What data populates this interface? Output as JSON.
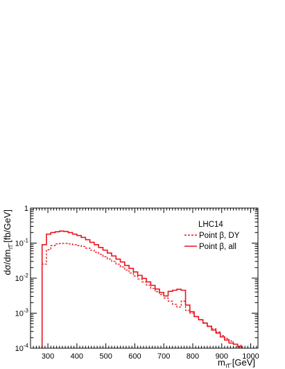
{
  "chart_data": {
    "type": "line",
    "subtype": "step-histogram",
    "title": "",
    "xlabel": "m_{τ̃τ̃} [GeV]",
    "xlabel_main": "m",
    "xlabel_sub": "τ̃τ̃",
    "xlabel_unit": " [GeV]",
    "ylabel": "dσ/dm_{τ̃τ̃} [fb/GeV]",
    "ylabel_main": "dσ/dm",
    "ylabel_sub": "τ̃τ̃",
    "ylabel_unit": " [fb/GeV]",
    "xlim": [
      240,
      1025
    ],
    "ylim": [
      0.0001,
      1
    ],
    "yscale": "log",
    "grid": false,
    "x_ticks": [
      300,
      400,
      500,
      600,
      700,
      800,
      900,
      1000
    ],
    "x_tick_labels": [
      "300",
      "400",
      "500",
      "600",
      "700",
      "800",
      "900",
      "1000"
    ],
    "y_ticks": [
      0.0001,
      0.001,
      0.01,
      0.1,
      1
    ],
    "y_tick_base": [
      "10",
      "10",
      "10",
      "10",
      "1"
    ],
    "y_tick_exp": [
      "-4",
      "-3",
      "-2",
      "-1",
      ""
    ],
    "legend_title": "LHC14",
    "legend_position": "top-right",
    "bin_edges": [
      280,
      295,
      310,
      325,
      340,
      355,
      370,
      385,
      400,
      415,
      430,
      445,
      460,
      475,
      490,
      505,
      520,
      535,
      550,
      565,
      580,
      595,
      610,
      625,
      640,
      655,
      670,
      685,
      700,
      715,
      730,
      745,
      760,
      775,
      790,
      805,
      820,
      835,
      850,
      865,
      880,
      895,
      910,
      925,
      940,
      955,
      970
    ],
    "series": [
      {
        "name": "Point β, DY",
        "color": "#e8141c",
        "style": "dashed",
        "values": [
          0.025,
          0.065,
          0.085,
          0.095,
          0.098,
          0.098,
          0.095,
          0.09,
          0.085,
          0.08,
          0.072,
          0.063,
          0.055,
          0.048,
          0.041,
          0.035,
          0.03,
          0.025,
          0.021,
          0.017,
          0.014,
          0.0115,
          0.0095,
          0.0078,
          0.0063,
          0.0051,
          0.0041,
          0.0034,
          0.0027,
          0.0022,
          0.0018,
          0.0015,
          0.0022,
          0.0012,
          0.001,
          0.0008,
          0.00065,
          0.00053,
          0.00043,
          0.00036,
          0.00029,
          0.00023,
          0.00019,
          0.00016,
          0.00013,
          0.00012
        ]
      },
      {
        "name": "Point β, all",
        "color": "#e8141c",
        "style": "solid",
        "values": [
          0.09,
          0.18,
          0.2,
          0.21,
          0.22,
          0.215,
          0.2,
          0.18,
          0.165,
          0.145,
          0.125,
          0.105,
          0.09,
          0.075,
          0.063,
          0.052,
          0.043,
          0.035,
          0.029,
          0.023,
          0.019,
          0.015,
          0.012,
          0.0098,
          0.0078,
          0.0062,
          0.0049,
          0.0039,
          0.0031,
          0.0042,
          0.0045,
          0.0048,
          0.0045,
          0.0017,
          0.0011,
          0.0008,
          0.00065,
          0.00052,
          0.00042,
          0.00033,
          0.00027,
          0.00021,
          0.00017,
          0.00014,
          0.00013,
          0.00011
        ]
      }
    ]
  }
}
